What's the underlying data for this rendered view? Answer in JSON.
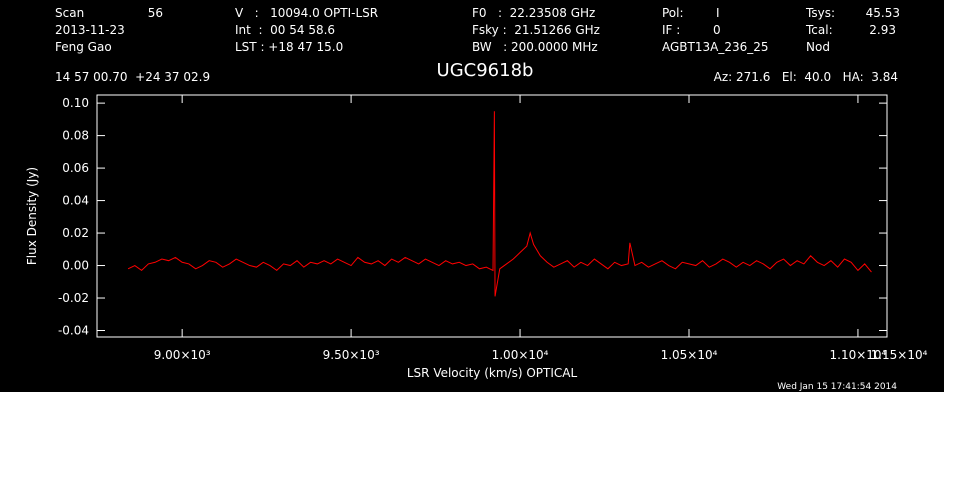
{
  "chart_data": {
    "type": "line",
    "title": "UGC9618b",
    "header": [
      "Scan",
      "56",
      "V   :   10094.0 OPTI-LSR",
      "F0   :  22.23508 GHz",
      "Pol:",
      "I",
      "Tsys:",
      "45.53",
      "2013-11-23",
      "Int  :  00 54 58.6",
      "Fsky :  21.51266 GHz",
      "IF :",
      "0",
      "Tcal:",
      "2.93",
      "Feng Gao",
      "LST : +18 47 15.0",
      "BW   : 200.0000 MHz",
      "AGBT13A_236_25",
      "Nod",
      "14 57 00.70  +24 37 02.9",
      "Az: 271.6   El:  40.0   HA:  3.84"
    ],
    "footer": "Wed Jan 15 17:41:54 2014",
    "x_label": "LSR Velocity (km/s) OPTICAL",
    "y_label": "Flux Density (Jy)",
    "xlim": [
      8748,
      11086
    ],
    "ylim": [
      -0.044,
      0.105
    ],
    "xticks": [
      {
        "value": 9000,
        "label": "9.00×10³"
      },
      {
        "value": 9500,
        "label": "9.50×10³"
      },
      {
        "value": 10000,
        "label": "1.00×10⁴"
      },
      {
        "value": 10500,
        "label": "1.05×10⁴"
      },
      {
        "value": 11000,
        "label": "1.10×10⁴"
      },
      {
        "value": 11500,
        "label": "1.15×10⁴"
      }
    ],
    "yticks": [
      {
        "value": -0.04,
        "label": "-0.04"
      },
      {
        "value": -0.02,
        "label": "-0.02"
      },
      {
        "value": 0,
        "label": "0.00"
      },
      {
        "value": 0.02,
        "label": "0.02"
      },
      {
        "value": 0.04,
        "label": "0.04"
      },
      {
        "value": 0.06,
        "label": "0.06"
      },
      {
        "value": 0.08,
        "label": "0.08"
      },
      {
        "value": 0.1,
        "label": "0.10"
      }
    ],
    "x": [
      8840,
      8860,
      8880,
      8900,
      8920,
      8940,
      8960,
      8980,
      9000,
      9020,
      9040,
      9060,
      9080,
      9100,
      9120,
      9140,
      9160,
      9180,
      9200,
      9220,
      9240,
      9260,
      9280,
      9300,
      9320,
      9340,
      9360,
      9380,
      9400,
      9420,
      9440,
      9460,
      9480,
      9500,
      9520,
      9540,
      9560,
      9580,
      9600,
      9620,
      9640,
      9660,
      9680,
      9700,
      9720,
      9740,
      9760,
      9780,
      9800,
      9820,
      9840,
      9860,
      9880,
      9900,
      9920,
      9924,
      9926,
      9940,
      9960,
      9980,
      10000,
      10020,
      10030,
      10040,
      10060,
      10080,
      10100,
      10120,
      10140,
      10160,
      10180,
      10200,
      10220,
      10240,
      10260,
      10280,
      10300,
      10320,
      10325,
      10340,
      10360,
      10380,
      10400,
      10420,
      10440,
      10460,
      10480,
      10500,
      10520,
      10540,
      10560,
      10580,
      10600,
      10620,
      10640,
      10660,
      10680,
      10700,
      10720,
      10740,
      10760,
      10780,
      10800,
      10820,
      10840,
      10860,
      10880,
      10900,
      10920,
      10940,
      10960,
      10980,
      11000,
      11020,
      11040
    ],
    "series": [
      {
        "color": "#ff0000",
        "values": [
          -0.002,
          0.0,
          -0.003,
          0.001,
          0.002,
          0.004,
          0.003,
          0.005,
          0.002,
          0.001,
          -0.002,
          0.0,
          0.003,
          0.002,
          -0.001,
          0.001,
          0.004,
          0.002,
          0.0,
          -0.001,
          0.002,
          0.0,
          -0.003,
          0.001,
          0.0,
          0.003,
          -0.001,
          0.002,
          0.001,
          0.003,
          0.001,
          0.004,
          0.002,
          0.0,
          0.005,
          0.002,
          0.001,
          0.003,
          0.0,
          0.004,
          0.002,
          0.005,
          0.003,
          0.001,
          0.004,
          0.002,
          0.0,
          0.003,
          0.001,
          0.002,
          0.0,
          0.001,
          -0.002,
          -0.001,
          -0.003,
          0.095,
          -0.019,
          -0.002,
          0.001,
          0.004,
          0.008,
          0.012,
          0.02,
          0.013,
          0.006,
          0.002,
          -0.001,
          0.001,
          0.003,
          -0.001,
          0.002,
          0.0,
          0.004,
          0.001,
          -0.002,
          0.002,
          0.0,
          0.001,
          0.014,
          0.0,
          0.002,
          -0.001,
          0.001,
          0.003,
          0.0,
          -0.002,
          0.002,
          0.001,
          0.0,
          0.003,
          -0.001,
          0.001,
          0.004,
          0.002,
          -0.001,
          0.002,
          0.0,
          0.003,
          0.001,
          -0.002,
          0.002,
          0.004,
          0.0,
          0.003,
          0.001,
          0.006,
          0.002,
          0.0,
          0.003,
          -0.001,
          0.004,
          0.002,
          -0.003,
          0.001,
          -0.004
        ]
      }
    ]
  }
}
